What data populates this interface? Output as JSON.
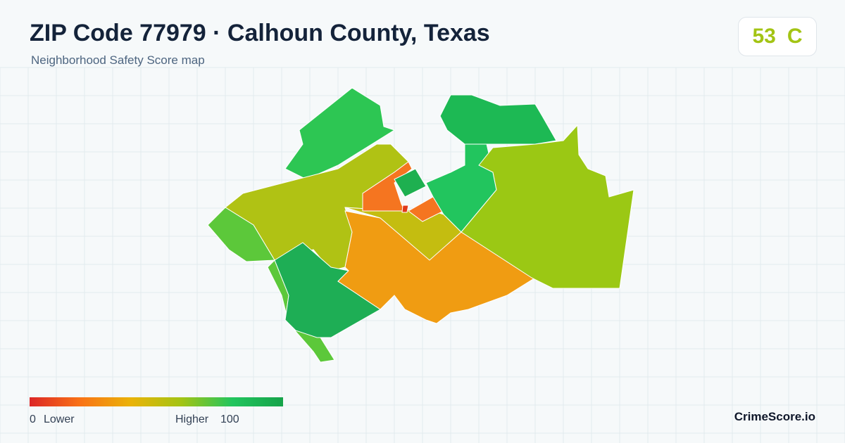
{
  "header": {
    "title": "ZIP Code 77979 · Calhoun County, Texas",
    "subtitle": "Neighborhood Safety Score map"
  },
  "score": {
    "value": 53,
    "grade": "C"
  },
  "legend": {
    "min": 0,
    "min_label": "Lower",
    "max_label": "Higher",
    "max": 100
  },
  "brand": "CrimeScore.io"
}
